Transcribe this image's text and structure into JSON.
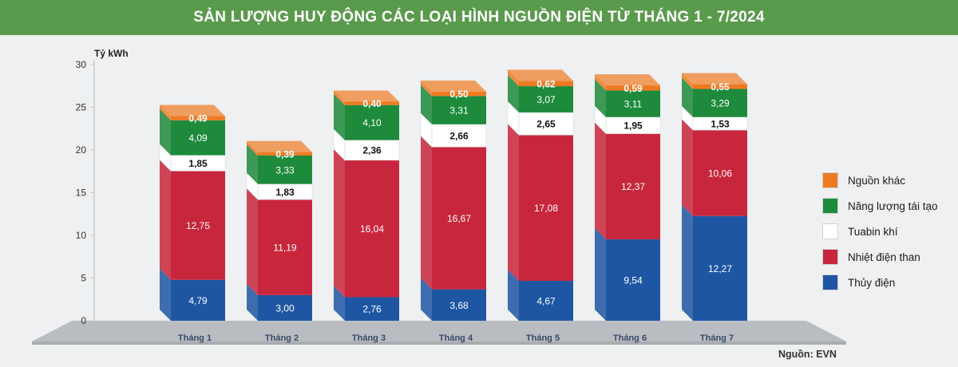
{
  "title": "SẢN LƯỢNG HUY ĐỘNG CÁC LOẠI HÌNH NGUỒN ĐIỆN TỪ THÁNG 1 - 7/2024",
  "source": "Nguồn: EVN",
  "colors": {
    "header_bg": "#5a9a4c",
    "Thủy điện": "#1f56a3",
    "Nhiệt điện than": "#c8263c",
    "Tuabin khí": "#ffffff",
    "Năng lượng tái tạo": "#1e8a3c",
    "Nguồn khác": "#ef7a22"
  },
  "chart_data": {
    "type": "bar",
    "stacked": true,
    "title": "SẢN LƯỢNG HUY ĐỘNG CÁC LOẠI HÌNH NGUỒN ĐIỆN TỪ THÁNG 1 - 7/2024",
    "ylabel": "Tỷ kWh",
    "xlabel": "",
    "ylim": [
      0,
      30
    ],
    "yticks": [
      0,
      5,
      10,
      15,
      20,
      25,
      30
    ],
    "categories": [
      "Tháng 1",
      "Tháng 2",
      "Tháng 3",
      "Tháng 4",
      "Tháng 5",
      "Tháng 6",
      "Tháng 7"
    ],
    "series": [
      {
        "name": "Thủy điện",
        "values": [
          4.79,
          3.0,
          2.76,
          3.68,
          4.67,
          9.54,
          12.27
        ],
        "labels": [
          "4,79",
          "3,00",
          "2,76",
          "3,68",
          "4,67",
          "9,54",
          "12,27"
        ]
      },
      {
        "name": "Nhiệt điện than",
        "values": [
          12.75,
          11.19,
          16.04,
          16.67,
          17.08,
          12.37,
          10.06
        ],
        "labels": [
          "12,75",
          "11,19",
          "16,04",
          "16,67",
          "17,08",
          "12,37",
          "10,06"
        ]
      },
      {
        "name": "Tuabin khí",
        "values": [
          1.85,
          1.83,
          2.36,
          2.66,
          2.65,
          1.95,
          1.53
        ],
        "labels": [
          "1,85",
          "1,83",
          "2,36",
          "2,66",
          "2,65",
          "1,95",
          "1,53"
        ]
      },
      {
        "name": "Năng lượng tái tạo",
        "values": [
          4.09,
          3.33,
          4.1,
          3.31,
          3.07,
          3.11,
          3.29
        ],
        "labels": [
          "4,09",
          "3,33",
          "4,10",
          "3,31",
          "3,07",
          "3,11",
          "3,29"
        ]
      },
      {
        "name": "Nguồn khác",
        "values": [
          0.49,
          0.39,
          0.4,
          0.5,
          0.62,
          0.59,
          0.55
        ],
        "labels": [
          "0,49",
          "0,39",
          "0,40",
          "0,50",
          "0,62",
          "0,59",
          "0,55"
        ]
      }
    ],
    "legend_position": "right",
    "legend_order": [
      "Nguồn khác",
      "Năng lượng tái tạo",
      "Tuabin khí",
      "Nhiệt điện than",
      "Thủy điện"
    ],
    "grid": false
  }
}
